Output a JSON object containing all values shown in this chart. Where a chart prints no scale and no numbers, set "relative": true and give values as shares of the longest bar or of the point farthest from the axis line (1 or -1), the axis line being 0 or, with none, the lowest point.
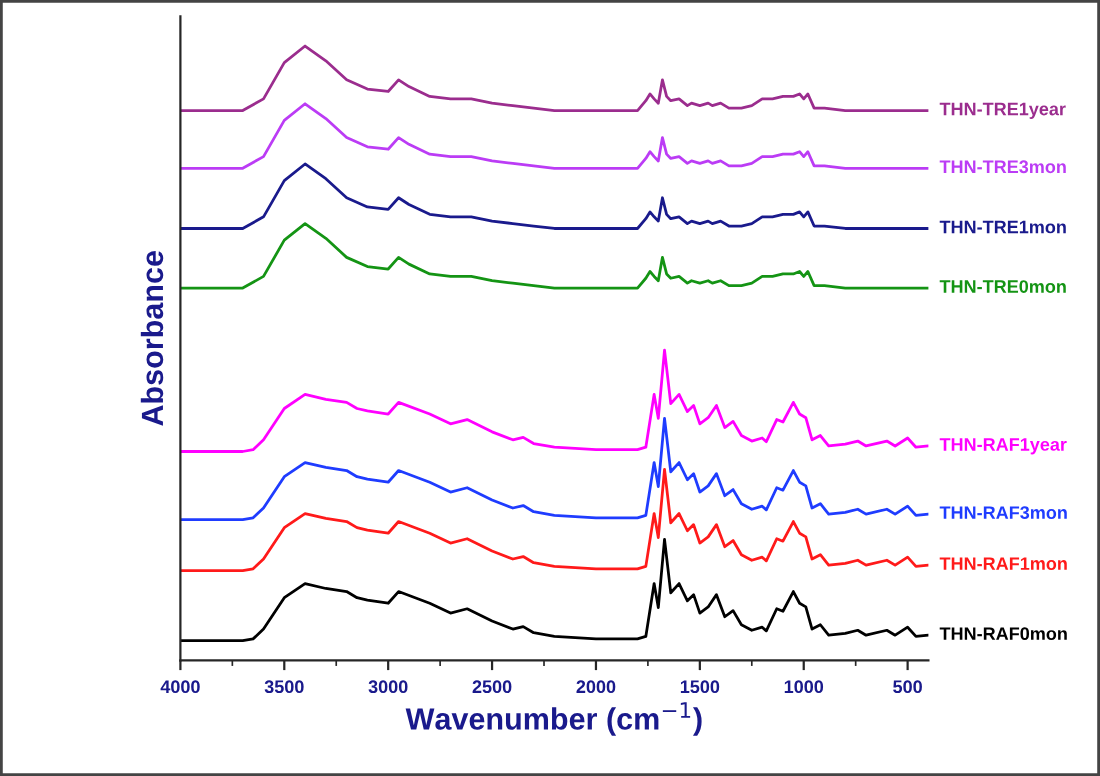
{
  "chart_data": {
    "type": "line",
    "relative": true,
    "xlabel": "Wavenumber (cm$^{−1}$)",
    "ylabel": "Absorbance",
    "xlim": [
      4000,
      400
    ],
    "xticks": [
      4000,
      3500,
      3000,
      2500,
      2000,
      1500,
      1000,
      500
    ],
    "legend": false,
    "line_style": "solid",
    "series": [
      {
        "name": "THN-TRE1year",
        "color": "#9b2d8e",
        "x": [
          4000,
          3700,
          3600,
          3500,
          3400,
          3300,
          3200,
          3100,
          3000,
          2950,
          2900,
          2800,
          2700,
          2600,
          2500,
          2400,
          2300,
          2200,
          2100,
          2000,
          1900,
          1800,
          1760,
          1740,
          1720,
          1700,
          1680,
          1660,
          1640,
          1600,
          1560,
          1540,
          1500,
          1460,
          1440,
          1400,
          1360,
          1300,
          1250,
          1200,
          1150,
          1100,
          1050,
          1020,
          1000,
          980,
          950,
          900,
          800,
          700,
          600,
          500,
          400
        ],
        "values": [
          0.895,
          0.895,
          0.914,
          0.973,
          1.0,
          0.976,
          0.945,
          0.93,
          0.926,
          0.945,
          0.934,
          0.918,
          0.914,
          0.914,
          0.907,
          0.903,
          0.899,
          0.895,
          0.895,
          0.895,
          0.895,
          0.895,
          0.911,
          0.922,
          0.914,
          0.907,
          0.945,
          0.918,
          0.911,
          0.914,
          0.903,
          0.907,
          0.903,
          0.907,
          0.903,
          0.907,
          0.899,
          0.899,
          0.903,
          0.914,
          0.914,
          0.918,
          0.918,
          0.922,
          0.914,
          0.922,
          0.899,
          0.899,
          0.895,
          0.895,
          0.895,
          0.895,
          0.895
        ]
      },
      {
        "name": "THN-TRE3mon",
        "color": "#bb3cf5",
        "x": [
          4000,
          3700,
          3600,
          3500,
          3400,
          3300,
          3200,
          3100,
          3000,
          2950,
          2900,
          2800,
          2700,
          2600,
          2500,
          2400,
          2300,
          2200,
          2100,
          2000,
          1900,
          1800,
          1760,
          1740,
          1720,
          1700,
          1680,
          1660,
          1640,
          1600,
          1560,
          1540,
          1500,
          1460,
          1440,
          1400,
          1360,
          1300,
          1250,
          1200,
          1150,
          1100,
          1050,
          1020,
          1000,
          980,
          950,
          900,
          800,
          700,
          600,
          500,
          400
        ],
        "values": [
          0.801,
          0.801,
          0.82,
          0.879,
          0.906,
          0.882,
          0.851,
          0.836,
          0.832,
          0.851,
          0.84,
          0.824,
          0.82,
          0.82,
          0.813,
          0.809,
          0.805,
          0.801,
          0.801,
          0.801,
          0.801,
          0.801,
          0.817,
          0.828,
          0.82,
          0.813,
          0.851,
          0.824,
          0.817,
          0.82,
          0.809,
          0.813,
          0.809,
          0.813,
          0.809,
          0.813,
          0.805,
          0.805,
          0.809,
          0.82,
          0.82,
          0.824,
          0.824,
          0.828,
          0.82,
          0.828,
          0.805,
          0.805,
          0.801,
          0.801,
          0.801,
          0.801,
          0.801
        ]
      },
      {
        "name": "THN-TRE1mon",
        "color": "#1a1a8c",
        "x": [
          4000,
          3700,
          3600,
          3500,
          3400,
          3300,
          3200,
          3100,
          3000,
          2950,
          2900,
          2800,
          2700,
          2600,
          2500,
          2400,
          2300,
          2200,
          2100,
          2000,
          1900,
          1800,
          1760,
          1740,
          1720,
          1700,
          1680,
          1660,
          1640,
          1600,
          1560,
          1540,
          1500,
          1460,
          1440,
          1400,
          1360,
          1300,
          1250,
          1200,
          1150,
          1100,
          1050,
          1020,
          1000,
          980,
          950,
          900,
          800,
          700,
          600,
          500,
          400
        ],
        "values": [
          0.703,
          0.703,
          0.722,
          0.781,
          0.808,
          0.784,
          0.753,
          0.738,
          0.734,
          0.753,
          0.742,
          0.726,
          0.722,
          0.722,
          0.715,
          0.711,
          0.707,
          0.703,
          0.703,
          0.703,
          0.703,
          0.703,
          0.719,
          0.73,
          0.722,
          0.715,
          0.753,
          0.726,
          0.719,
          0.722,
          0.711,
          0.715,
          0.711,
          0.715,
          0.711,
          0.715,
          0.707,
          0.707,
          0.711,
          0.722,
          0.722,
          0.726,
          0.726,
          0.73,
          0.722,
          0.73,
          0.707,
          0.707,
          0.703,
          0.703,
          0.703,
          0.703,
          0.703
        ]
      },
      {
        "name": "THN-TRE0mon",
        "color": "#149414",
        "x": [
          4000,
          3700,
          3600,
          3500,
          3400,
          3300,
          3200,
          3100,
          3000,
          2950,
          2900,
          2800,
          2700,
          2600,
          2500,
          2400,
          2300,
          2200,
          2100,
          2000,
          1900,
          1800,
          1760,
          1740,
          1720,
          1700,
          1680,
          1660,
          1640,
          1600,
          1560,
          1540,
          1500,
          1460,
          1440,
          1400,
          1360,
          1300,
          1250,
          1200,
          1150,
          1100,
          1050,
          1020,
          1000,
          980,
          950,
          900,
          800,
          700,
          600,
          500,
          400
        ],
        "values": [
          0.606,
          0.606,
          0.625,
          0.684,
          0.711,
          0.687,
          0.656,
          0.641,
          0.637,
          0.656,
          0.645,
          0.629,
          0.625,
          0.625,
          0.618,
          0.614,
          0.61,
          0.606,
          0.606,
          0.606,
          0.606,
          0.606,
          0.622,
          0.633,
          0.625,
          0.618,
          0.656,
          0.629,
          0.622,
          0.625,
          0.614,
          0.618,
          0.614,
          0.618,
          0.614,
          0.618,
          0.61,
          0.61,
          0.614,
          0.625,
          0.625,
          0.629,
          0.629,
          0.633,
          0.625,
          0.633,
          0.61,
          0.61,
          0.606,
          0.606,
          0.606,
          0.606,
          0.606
        ]
      },
      {
        "name": "THN-RAF1year",
        "color": "#ff00ff",
        "x": [
          4000,
          3700,
          3650,
          3600,
          3500,
          3400,
          3300,
          3200,
          3150,
          3100,
          3000,
          2950,
          2800,
          2700,
          2620,
          2500,
          2400,
          2350,
          2300,
          2200,
          2000,
          1800,
          1760,
          1720,
          1700,
          1670,
          1640,
          1600,
          1560,
          1530,
          1500,
          1460,
          1420,
          1380,
          1340,
          1300,
          1250,
          1200,
          1180,
          1130,
          1100,
          1050,
          1020,
          990,
          960,
          920,
          880,
          800,
          740,
          700,
          600,
          560,
          500,
          460,
          400
        ],
        "values": [
          0.34,
          0.34,
          0.343,
          0.359,
          0.41,
          0.433,
          0.425,
          0.42,
          0.41,
          0.406,
          0.401,
          0.42,
          0.401,
          0.385,
          0.392,
          0.372,
          0.359,
          0.363,
          0.353,
          0.347,
          0.343,
          0.343,
          0.347,
          0.433,
          0.394,
          0.505,
          0.418,
          0.433,
          0.405,
          0.415,
          0.385,
          0.395,
          0.415,
          0.379,
          0.389,
          0.366,
          0.357,
          0.362,
          0.356,
          0.392,
          0.388,
          0.42,
          0.401,
          0.395,
          0.359,
          0.366,
          0.349,
          0.352,
          0.357,
          0.349,
          0.357,
          0.349,
          0.362,
          0.347,
          0.349
        ]
      },
      {
        "name": "THN-RAF3mon",
        "color": "#1f3cff",
        "x": [
          4000,
          3700,
          3650,
          3600,
          3500,
          3400,
          3300,
          3200,
          3150,
          3100,
          3000,
          2950,
          2800,
          2700,
          2620,
          2500,
          2400,
          2350,
          2300,
          2200,
          2000,
          1800,
          1760,
          1720,
          1700,
          1670,
          1640,
          1600,
          1560,
          1530,
          1500,
          1460,
          1420,
          1380,
          1340,
          1300,
          1250,
          1200,
          1180,
          1130,
          1100,
          1050,
          1020,
          990,
          960,
          920,
          880,
          800,
          740,
          700,
          600,
          560,
          500,
          460,
          400
        ],
        "values": [
          0.229,
          0.229,
          0.232,
          0.248,
          0.299,
          0.322,
          0.314,
          0.309,
          0.299,
          0.295,
          0.29,
          0.309,
          0.29,
          0.274,
          0.281,
          0.261,
          0.248,
          0.252,
          0.242,
          0.236,
          0.232,
          0.232,
          0.236,
          0.322,
          0.283,
          0.394,
          0.307,
          0.322,
          0.294,
          0.304,
          0.274,
          0.284,
          0.304,
          0.268,
          0.278,
          0.255,
          0.246,
          0.251,
          0.245,
          0.281,
          0.277,
          0.309,
          0.29,
          0.284,
          0.248,
          0.255,
          0.238,
          0.241,
          0.246,
          0.238,
          0.246,
          0.238,
          0.251,
          0.236,
          0.238
        ]
      },
      {
        "name": "THN-RAF1mon",
        "color": "#ff1a1a",
        "x": [
          4000,
          3700,
          3650,
          3600,
          3500,
          3400,
          3300,
          3200,
          3150,
          3100,
          3000,
          2950,
          2800,
          2700,
          2620,
          2500,
          2400,
          2350,
          2300,
          2200,
          2000,
          1800,
          1760,
          1720,
          1700,
          1670,
          1640,
          1600,
          1560,
          1530,
          1500,
          1460,
          1420,
          1380,
          1340,
          1300,
          1250,
          1200,
          1180,
          1130,
          1100,
          1050,
          1020,
          990,
          960,
          920,
          880,
          800,
          740,
          700,
          600,
          560,
          500,
          460,
          400
        ],
        "values": [
          0.146,
          0.146,
          0.149,
          0.165,
          0.216,
          0.239,
          0.231,
          0.226,
          0.216,
          0.212,
          0.207,
          0.226,
          0.207,
          0.191,
          0.198,
          0.178,
          0.165,
          0.169,
          0.159,
          0.153,
          0.149,
          0.149,
          0.153,
          0.239,
          0.2,
          0.311,
          0.224,
          0.239,
          0.211,
          0.221,
          0.191,
          0.201,
          0.221,
          0.185,
          0.195,
          0.172,
          0.163,
          0.168,
          0.162,
          0.198,
          0.194,
          0.226,
          0.207,
          0.201,
          0.165,
          0.172,
          0.155,
          0.158,
          0.163,
          0.155,
          0.163,
          0.155,
          0.168,
          0.153,
          0.155
        ]
      },
      {
        "name": "THN-RAF0mon",
        "color": "#000000",
        "x": [
          4000,
          3700,
          3650,
          3600,
          3500,
          3400,
          3300,
          3200,
          3150,
          3100,
          3000,
          2950,
          2800,
          2700,
          2620,
          2500,
          2400,
          2350,
          2300,
          2200,
          2000,
          1800,
          1760,
          1720,
          1700,
          1670,
          1640,
          1600,
          1560,
          1530,
          1500,
          1460,
          1420,
          1380,
          1340,
          1300,
          1250,
          1200,
          1180,
          1130,
          1100,
          1050,
          1020,
          990,
          960,
          920,
          880,
          800,
          740,
          700,
          600,
          560,
          500,
          460,
          400
        ],
        "values": [
          0.032,
          0.032,
          0.035,
          0.051,
          0.102,
          0.125,
          0.117,
          0.112,
          0.102,
          0.098,
          0.093,
          0.112,
          0.093,
          0.077,
          0.084,
          0.064,
          0.051,
          0.055,
          0.045,
          0.039,
          0.035,
          0.035,
          0.039,
          0.125,
          0.086,
          0.197,
          0.11,
          0.125,
          0.097,
          0.107,
          0.077,
          0.087,
          0.107,
          0.071,
          0.081,
          0.058,
          0.049,
          0.054,
          0.048,
          0.084,
          0.08,
          0.112,
          0.093,
          0.087,
          0.051,
          0.058,
          0.041,
          0.044,
          0.049,
          0.041,
          0.049,
          0.041,
          0.054,
          0.039,
          0.041
        ]
      }
    ]
  }
}
